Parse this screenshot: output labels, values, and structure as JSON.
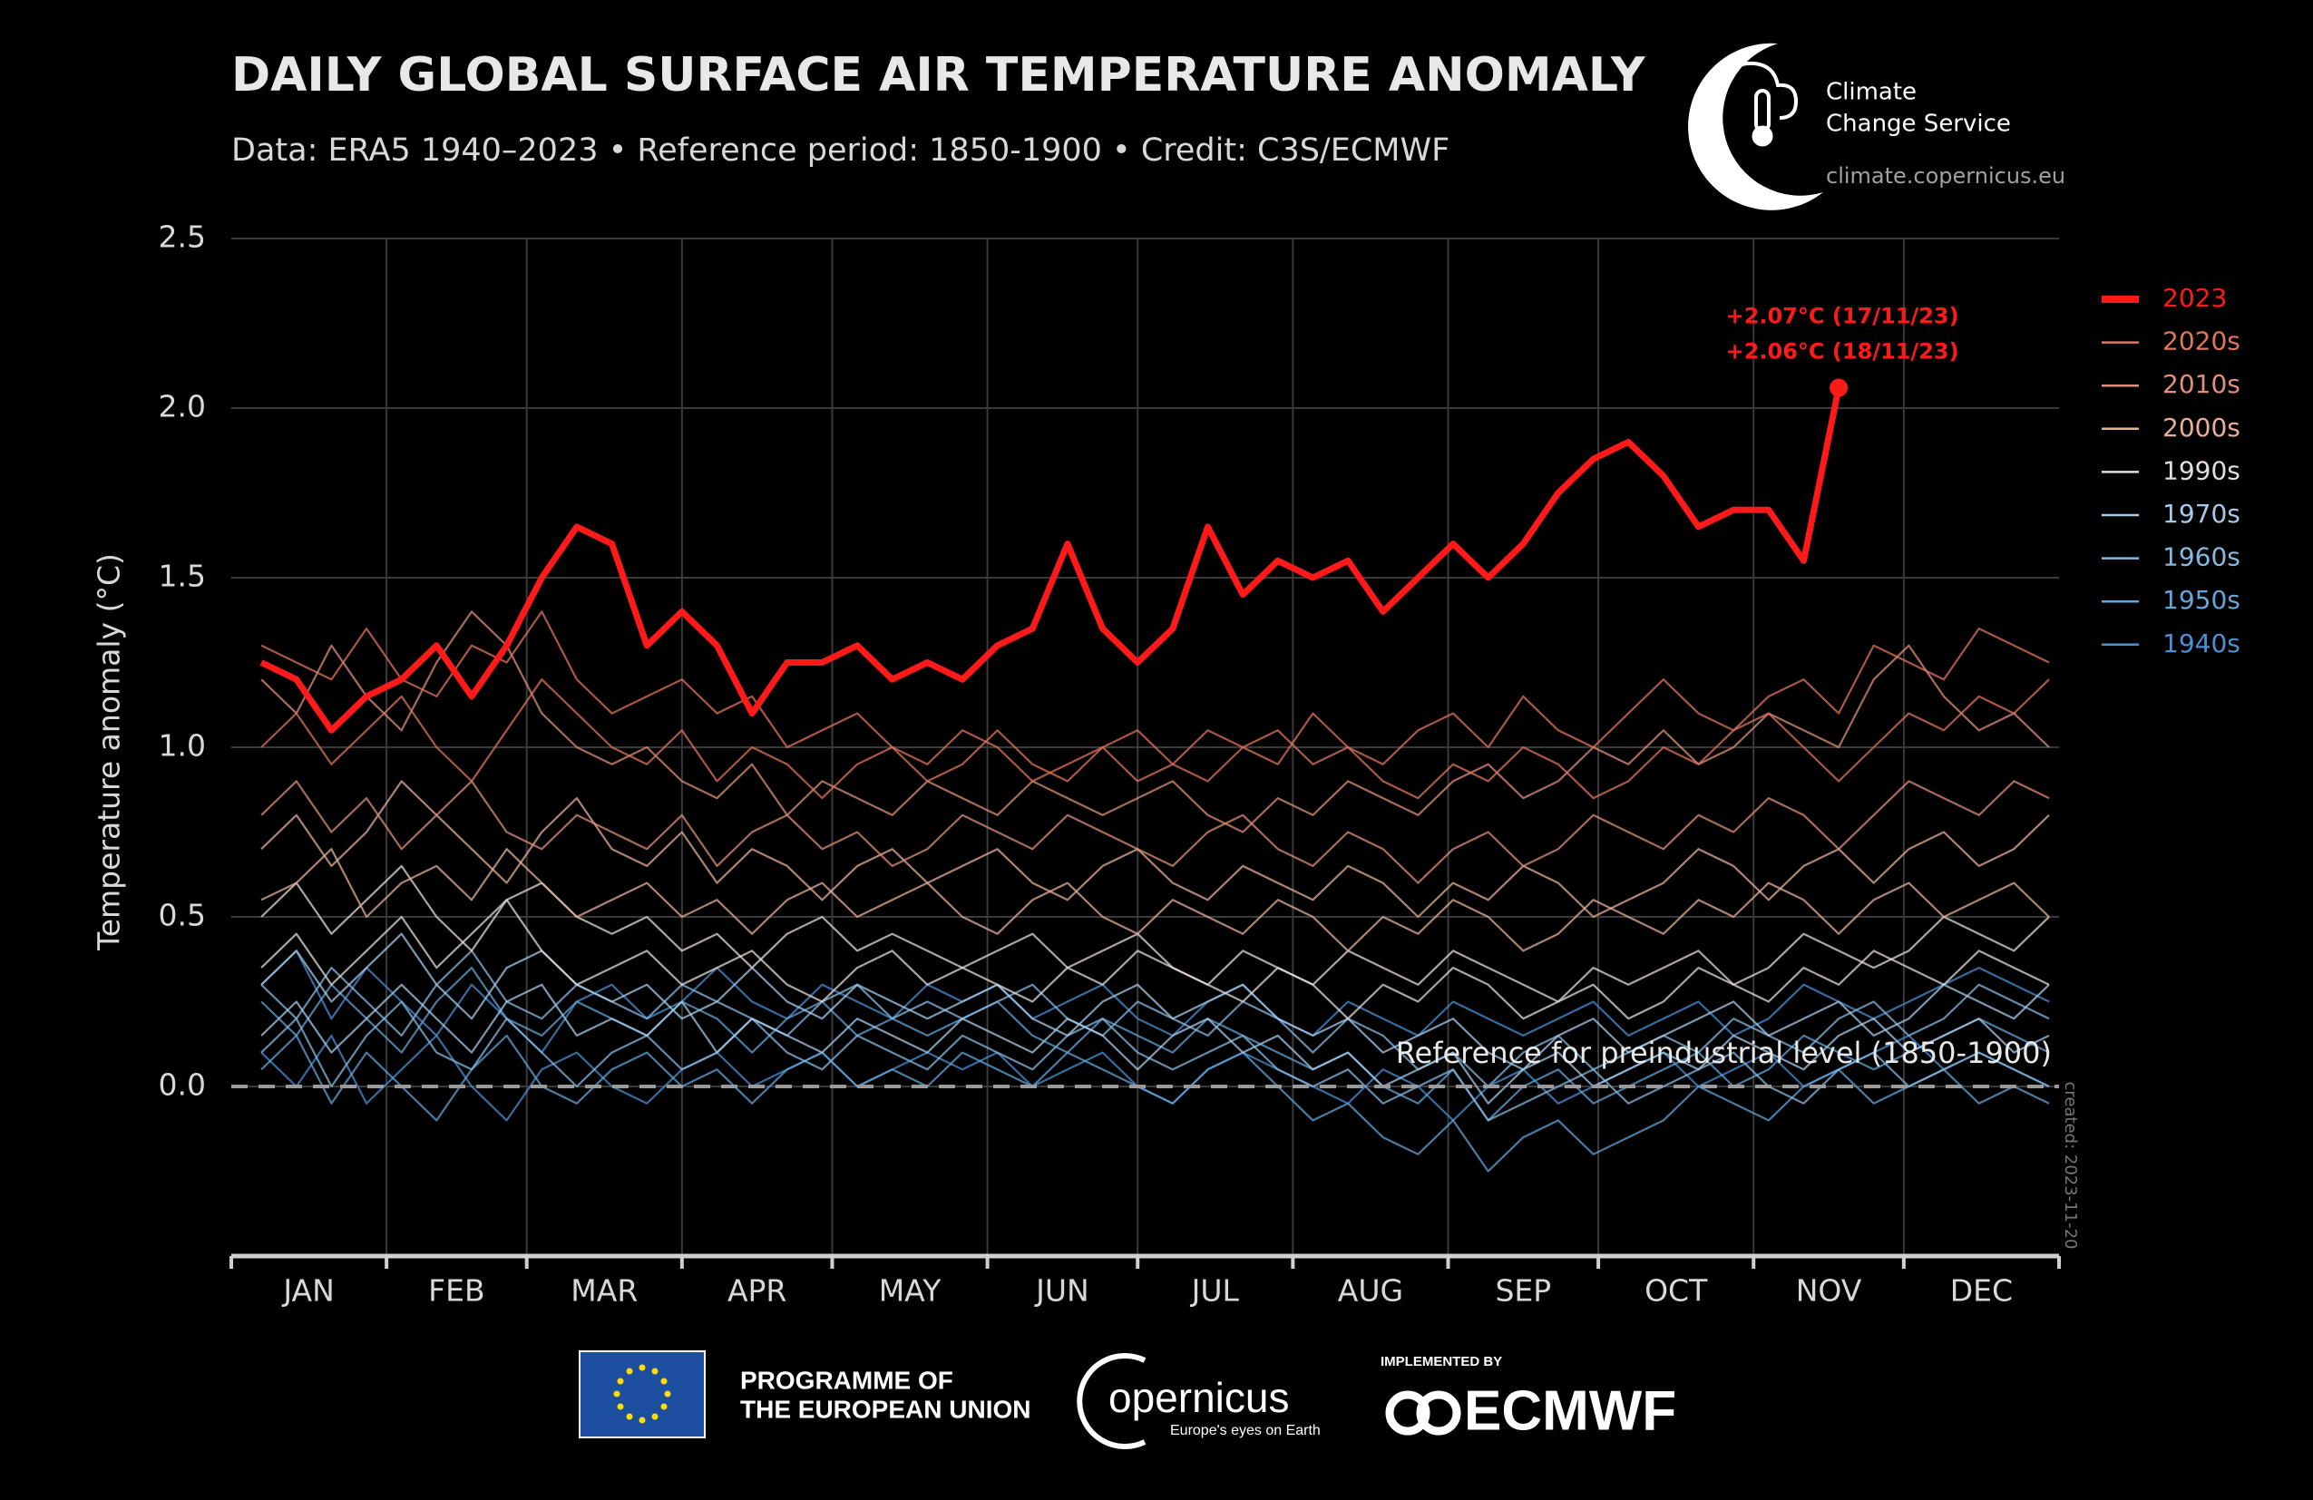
{
  "chart_data": {
    "type": "line",
    "title": "DAILY GLOBAL SURFACE AIR TEMPERATURE ANOMALY",
    "subtitle": "Data: ERA5 1940–2023 • Reference period: 1850-1900 • Credit: C3S/ECMWF",
    "y_label": "Temperature anomaly (°C)",
    "categories": [
      "JAN",
      "FEB",
      "MAR",
      "APR",
      "MAY",
      "JUN",
      "JUL",
      "AUG",
      "SEP",
      "OCT",
      "NOV",
      "DEC"
    ],
    "xlim": [
      1,
      366
    ],
    "xticks": [
      1,
      32,
      60,
      91,
      121,
      152,
      182,
      213,
      244,
      274,
      305,
      335,
      366
    ],
    "ylim": [
      -0.5,
      2.5
    ],
    "yticks": [
      {
        "value": 0,
        "label": "0.0"
      },
      0.5,
      {
        "value": 1,
        "label": "1.0"
      },
      1.5,
      {
        "value": 2,
        "label": "2.0"
      },
      2.5
    ],
    "grid": true,
    "reference_value": 0,
    "reference_label": "Reference for preindustrial level (1850-1900)",
    "annotations": [
      "+2.07°C (17/11/23)",
      "+2.06°C (18/11/23)"
    ],
    "created": "created: 2023-11-20",
    "legend": "right",
    "x": [
      7,
      14,
      21,
      28,
      35,
      42,
      49,
      56,
      63,
      70,
      77,
      84,
      91,
      98,
      105,
      112,
      119,
      126,
      133,
      140,
      147,
      154,
      161,
      168,
      175,
      182,
      189,
      196,
      203,
      210,
      217,
      224,
      231,
      238,
      245,
      252,
      259,
      266,
      273,
      280,
      287,
      294,
      301,
      308,
      315,
      322,
      329,
      336,
      343,
      350,
      357,
      364
    ],
    "series": [
      {
        "name": "2023",
        "color": "#ff1a1a",
        "values": [
          1.25,
          1.2,
          1.05,
          1.15,
          1.2,
          1.3,
          1.15,
          1.3,
          1.5,
          1.65,
          1.6,
          1.3,
          1.4,
          1.3,
          1.1,
          1.25,
          1.25,
          1.3,
          1.2,
          1.25,
          1.2,
          1.3,
          1.35,
          1.6,
          1.35,
          1.25,
          1.35,
          1.65,
          1.45,
          1.55,
          1.5,
          1.55,
          1.4,
          1.5,
          1.6,
          1.5,
          1.6,
          1.75,
          1.85,
          1.9,
          1.8,
          1.65,
          1.7,
          1.7,
          1.55,
          2.06,
          null,
          null,
          null,
          null,
          null,
          null
        ]
      },
      {
        "name": "2020s",
        "color": "#e0765c",
        "values": [
          [
            1.3,
            1.25,
            1.2,
            1.35,
            1.2,
            1.15,
            1.3,
            1.25,
            1.4,
            1.2,
            1.1,
            1.15,
            1.2,
            1.1,
            1.15,
            1.0,
            1.05,
            1.1,
            1.0,
            0.95,
            1.05,
            1.0,
            0.9,
            0.95,
            1.0,
            0.9,
            0.95,
            1.05,
            1.0,
            0.95,
            1.1,
            1.0,
            0.95,
            1.05,
            1.1,
            1.0,
            1.15,
            1.05,
            1.0,
            1.1,
            1.2,
            1.1,
            1.05,
            1.15,
            1.2,
            1.1,
            1.3,
            1.25,
            1.2,
            1.35,
            1.3,
            1.25
          ],
          [
            1.0,
            1.1,
            0.95,
            1.05,
            1.15,
            1.0,
            0.9,
            1.05,
            1.2,
            1.1,
            1.0,
            0.95,
            1.05,
            0.9,
            1.0,
            0.95,
            0.85,
            0.95,
            1.0,
            0.9,
            0.95,
            1.05,
            0.95,
            0.9,
            1.0,
            1.05,
            0.95,
            0.9,
            1.0,
            1.05,
            0.95,
            1.0,
            0.9,
            0.85,
            0.95,
            0.9,
            1.0,
            0.95,
            0.85,
            0.9,
            1.0,
            0.95,
            1.05,
            1.1,
            1.0,
            0.9,
            1.0,
            1.1,
            1.05,
            1.15,
            1.1,
            1.2
          ]
        ]
      },
      {
        "name": "2010s",
        "color": "#e0907a",
        "values": [
          [
            1.2,
            1.1,
            1.3,
            1.15,
            1.05,
            1.25,
            1.4,
            1.3,
            1.1,
            1.0,
            0.95,
            1.0,
            0.9,
            0.85,
            0.95,
            0.8,
            0.9,
            0.85,
            0.8,
            0.9,
            0.85,
            0.8,
            0.9,
            0.85,
            0.8,
            0.85,
            0.9,
            0.8,
            0.75,
            0.85,
            0.8,
            0.9,
            0.85,
            0.8,
            0.9,
            0.95,
            0.85,
            0.9,
            1.0,
            0.95,
            1.05,
            0.95,
            1.0,
            1.1,
            1.05,
            1.0,
            1.2,
            1.3,
            1.15,
            1.05,
            1.1,
            1.0
          ],
          [
            0.8,
            0.9,
            0.75,
            0.85,
            0.7,
            0.8,
            0.9,
            0.75,
            0.7,
            0.8,
            0.75,
            0.7,
            0.8,
            0.65,
            0.75,
            0.8,
            0.7,
            0.75,
            0.65,
            0.7,
            0.8,
            0.75,
            0.7,
            0.8,
            0.75,
            0.7,
            0.65,
            0.75,
            0.8,
            0.7,
            0.65,
            0.75,
            0.7,
            0.6,
            0.7,
            0.75,
            0.65,
            0.7,
            0.8,
            0.75,
            0.7,
            0.8,
            0.75,
            0.85,
            0.8,
            0.7,
            0.8,
            0.9,
            0.85,
            0.8,
            0.9,
            0.85
          ]
        ]
      },
      {
        "name": "2000s",
        "color": "#e6b09a",
        "values": [
          [
            0.7,
            0.8,
            0.65,
            0.75,
            0.9,
            0.8,
            0.7,
            0.6,
            0.75,
            0.85,
            0.7,
            0.65,
            0.75,
            0.6,
            0.7,
            0.65,
            0.55,
            0.65,
            0.7,
            0.6,
            0.65,
            0.7,
            0.6,
            0.55,
            0.65,
            0.7,
            0.6,
            0.55,
            0.65,
            0.6,
            0.55,
            0.65,
            0.6,
            0.5,
            0.6,
            0.55,
            0.65,
            0.6,
            0.5,
            0.55,
            0.6,
            0.7,
            0.65,
            0.55,
            0.65,
            0.7,
            0.6,
            0.7,
            0.75,
            0.65,
            0.7,
            0.8
          ],
          [
            0.55,
            0.6,
            0.7,
            0.5,
            0.6,
            0.65,
            0.55,
            0.7,
            0.6,
            0.5,
            0.55,
            0.6,
            0.5,
            0.55,
            0.45,
            0.55,
            0.6,
            0.5,
            0.55,
            0.6,
            0.5,
            0.45,
            0.55,
            0.6,
            0.5,
            0.45,
            0.55,
            0.5,
            0.45,
            0.55,
            0.5,
            0.4,
            0.5,
            0.45,
            0.55,
            0.5,
            0.4,
            0.45,
            0.55,
            0.5,
            0.45,
            0.55,
            0.5,
            0.6,
            0.55,
            0.45,
            0.55,
            0.6,
            0.5,
            0.55,
            0.6,
            0.5
          ]
        ]
      },
      {
        "name": "1990s",
        "color": "#e4dcd8",
        "values": [
          [
            0.5,
            0.6,
            0.45,
            0.55,
            0.65,
            0.5,
            0.4,
            0.55,
            0.6,
            0.5,
            0.45,
            0.5,
            0.4,
            0.45,
            0.35,
            0.45,
            0.5,
            0.4,
            0.45,
            0.4,
            0.35,
            0.4,
            0.45,
            0.35,
            0.4,
            0.45,
            0.35,
            0.3,
            0.4,
            0.35,
            0.3,
            0.4,
            0.35,
            0.3,
            0.4,
            0.35,
            0.3,
            0.25,
            0.35,
            0.3,
            0.35,
            0.4,
            0.3,
            0.35,
            0.45,
            0.4,
            0.35,
            0.4,
            0.5,
            0.45,
            0.4,
            0.5
          ],
          [
            0.35,
            0.45,
            0.3,
            0.4,
            0.5,
            0.35,
            0.45,
            0.55,
            0.4,
            0.3,
            0.35,
            0.4,
            0.3,
            0.35,
            0.4,
            0.3,
            0.25,
            0.35,
            0.4,
            0.3,
            0.35,
            0.3,
            0.25,
            0.35,
            0.3,
            0.4,
            0.35,
            0.3,
            0.25,
            0.35,
            0.3,
            0.2,
            0.3,
            0.25,
            0.35,
            0.3,
            0.2,
            0.25,
            0.3,
            0.2,
            0.25,
            0.35,
            0.3,
            0.25,
            0.35,
            0.3,
            0.4,
            0.35,
            0.3,
            0.4,
            0.35,
            0.3
          ]
        ]
      },
      {
        "name": "1970s",
        "color": "#a6cbe8",
        "values": [
          [
            0.3,
            0.4,
            0.25,
            0.35,
            0.45,
            0.3,
            0.2,
            0.35,
            0.4,
            0.3,
            0.25,
            0.3,
            0.2,
            0.25,
            0.35,
            0.25,
            0.2,
            0.3,
            0.25,
            0.2,
            0.25,
            0.3,
            0.2,
            0.15,
            0.25,
            0.3,
            0.2,
            0.25,
            0.3,
            0.2,
            0.15,
            0.2,
            0.1,
            0.15,
            0.2,
            0.1,
            0.05,
            0.15,
            0.2,
            0.1,
            0.15,
            0.2,
            0.25,
            0.15,
            0.2,
            0.25,
            0.15,
            0.2,
            0.3,
            0.25,
            0.2,
            0.3
          ],
          [
            0.15,
            0.25,
            0.1,
            0.2,
            0.3,
            0.2,
            0.1,
            0.25,
            0.3,
            0.15,
            0.2,
            0.15,
            0.25,
            0.1,
            0.2,
            0.15,
            0.1,
            0.2,
            0.15,
            0.1,
            0.2,
            0.15,
            0.1,
            0.2,
            0.15,
            0.05,
            0.15,
            0.2,
            0.1,
            0.15,
            0.05,
            0.1,
            0.0,
            0.05,
            0.1,
            -0.05,
            0.05,
            0.1,
            0.0,
            0.05,
            0.1,
            0.05,
            0.15,
            0.1,
            0.05,
            0.15,
            0.2,
            0.1,
            0.15,
            0.2,
            0.1,
            0.15
          ]
        ]
      },
      {
        "name": "1960s",
        "color": "#86b9e0",
        "values": [
          [
            0.3,
            0.2,
            0.35,
            0.25,
            0.15,
            0.3,
            0.4,
            0.25,
            0.2,
            0.3,
            0.25,
            0.2,
            0.3,
            0.25,
            0.2,
            0.15,
            0.25,
            0.3,
            0.2,
            0.25,
            0.2,
            0.25,
            0.3,
            0.2,
            0.15,
            0.25,
            0.2,
            0.15,
            0.25,
            0.2,
            0.1,
            0.2,
            0.15,
            0.05,
            0.1,
            0.0,
            0.1,
            0.15,
            0.05,
            0.1,
            0.15,
            0.1,
            0.2,
            0.15,
            0.1,
            0.2,
            0.25,
            0.15,
            0.2,
            0.3,
            0.25,
            0.2
          ],
          [
            0.1,
            0.2,
            0.0,
            0.15,
            0.25,
            0.1,
            0.05,
            0.2,
            0.1,
            0.0,
            0.1,
            0.15,
            0.05,
            0.1,
            0.2,
            0.1,
            0.05,
            0.15,
            0.1,
            0.05,
            0.15,
            0.1,
            0.05,
            0.15,
            0.2,
            0.1,
            0.05,
            0.1,
            0.15,
            0.05,
            0.0,
            0.05,
            -0.05,
            0.0,
            0.05,
            -0.1,
            -0.05,
            0.0,
            0.05,
            -0.05,
            0.0,
            0.05,
            0.1,
            0.0,
            -0.05,
            0.05,
            0.1,
            0.0,
            0.05,
            0.1,
            0.05,
            0.0
          ]
        ]
      },
      {
        "name": "1950s",
        "color": "#62a6da",
        "values": [
          [
            0.25,
            0.15,
            0.3,
            0.2,
            0.1,
            0.25,
            0.35,
            0.2,
            0.15,
            0.25,
            0.2,
            0.15,
            0.25,
            0.2,
            0.1,
            0.2,
            0.25,
            0.15,
            0.2,
            0.15,
            0.2,
            0.25,
            0.15,
            0.1,
            0.2,
            0.15,
            0.1,
            0.2,
            0.15,
            0.1,
            0.05,
            0.1,
            0.0,
            -0.05,
            0.05,
            -0.1,
            0.0,
            0.05,
            -0.05,
            0.0,
            0.05,
            0.1,
            0.0,
            0.05,
            0.15,
            0.1,
            0.05,
            0.1,
            0.15,
            0.2,
            0.15,
            0.1
          ],
          [
            0.05,
            0.15,
            -0.05,
            0.1,
            0.0,
            -0.1,
            0.05,
            0.15,
            0.0,
            -0.05,
            0.05,
            0.1,
            0.0,
            0.05,
            -0.05,
            0.05,
            0.1,
            0.0,
            0.05,
            0.0,
            0.1,
            0.05,
            0.0,
            0.1,
            0.05,
            0.0,
            -0.05,
            0.05,
            0.1,
            0.0,
            -0.1,
            -0.05,
            -0.15,
            -0.2,
            -0.1,
            -0.25,
            -0.15,
            -0.1,
            -0.2,
            -0.15,
            -0.1,
            0.0,
            -0.05,
            -0.1,
            0.0,
            0.05,
            -0.05,
            0.0,
            0.05,
            -0.05,
            0.0,
            -0.05
          ]
        ]
      },
      {
        "name": "1940s",
        "color": "#4a90d4",
        "values": [
          [
            0.3,
            0.4,
            0.2,
            0.35,
            0.25,
            0.15,
            0.3,
            0.2,
            0.1,
            0.25,
            0.3,
            0.2,
            0.25,
            0.35,
            0.25,
            0.2,
            0.3,
            0.25,
            0.2,
            0.3,
            0.25,
            0.3,
            0.2,
            0.25,
            0.3,
            0.2,
            0.15,
            0.25,
            0.3,
            0.2,
            0.15,
            0.25,
            0.2,
            0.15,
            0.25,
            0.2,
            0.15,
            0.2,
            0.25,
            0.15,
            0.2,
            0.25,
            0.15,
            0.2,
            0.3,
            0.25,
            0.2,
            0.25,
            0.3,
            0.35,
            0.3,
            0.25
          ],
          [
            0.1,
            0.0,
            0.15,
            -0.05,
            0.05,
            0.15,
            0.0,
            -0.1,
            0.05,
            0.1,
            0.0,
            -0.05,
            0.05,
            0.1,
            0.0,
            0.05,
            0.1,
            0.0,
            0.05,
            0.1,
            0.05,
            0.1,
            0.0,
            0.05,
            0.1,
            0.0,
            -0.05,
            0.05,
            0.1,
            0.05,
            0.0,
            -0.05,
            0.05,
            0.0,
            -0.1,
            0.0,
            0.05,
            -0.05,
            0.0,
            0.05,
            0.1,
            0.0,
            0.05,
            0.1,
            0.0,
            0.05,
            0.1,
            0.15,
            0.05,
            0.1,
            0.05,
            0.0
          ]
        ]
      }
    ]
  },
  "header": {
    "service": [
      "Climate",
      "Change Service"
    ],
    "url": "climate.copernicus.eu"
  },
  "footer": {
    "eu": [
      "PROGRAMME OF",
      "THE EUROPEAN UNION"
    ],
    "copernicus": "opernicus",
    "copernicus_tagline": "Europe's eyes on Earth",
    "implemented_by": "IMPLEMENTED BY",
    "ecmwf": "ECMWF"
  }
}
